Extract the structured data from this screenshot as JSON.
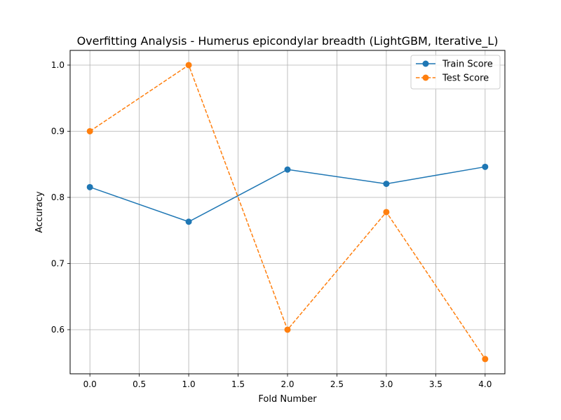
{
  "chart_data": {
    "type": "line",
    "title": "Overfitting Analysis - Humerus epicondylar breadth (LightGBM, Iterative_L)",
    "xlabel": "Fold Number",
    "ylabel": "Accuracy",
    "x": [
      0,
      1,
      2,
      3,
      4
    ],
    "xlim": [
      -0.2,
      4.2
    ],
    "ylim": [
      0.5333,
      1.0222
    ],
    "xticks": [
      0.0,
      0.5,
      1.0,
      1.5,
      2.0,
      2.5,
      3.0,
      3.5,
      4.0
    ],
    "xtick_labels": [
      "0.0",
      "0.5",
      "1.0",
      "1.5",
      "2.0",
      "2.5",
      "3.0",
      "3.5",
      "4.0"
    ],
    "yticks": [
      0.6,
      0.7,
      0.8,
      0.9,
      1.0
    ],
    "ytick_labels": [
      "0.6",
      "0.7",
      "0.8",
      "0.9",
      "1.0"
    ],
    "grid": true,
    "legend_position": "upper right",
    "series": [
      {
        "name": "Train Score",
        "values": [
          0.8155,
          0.7632,
          0.8421,
          0.8205,
          0.8462
        ],
        "color": "#1f77b4",
        "linestyle": "solid",
        "marker": "circle"
      },
      {
        "name": "Test Score",
        "values": [
          0.9,
          1.0,
          0.6,
          0.7778,
          0.5556
        ],
        "color": "#ff7f0e",
        "linestyle": "dashed",
        "marker": "circle"
      }
    ]
  }
}
